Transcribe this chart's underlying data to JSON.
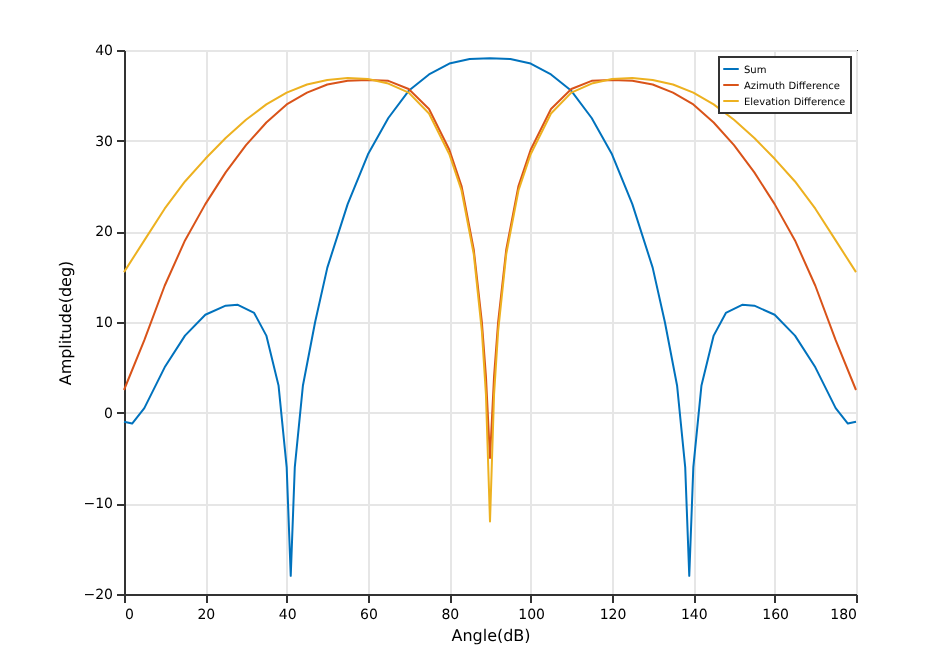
{
  "chart_data": {
    "type": "line",
    "xlabel": "Angle(dB)",
    "ylabel": "Amplitude(deg)",
    "xlim": [
      0,
      180
    ],
    "ylim": [
      -20,
      40
    ],
    "xticks": [
      0,
      20,
      40,
      60,
      80,
      100,
      120,
      140,
      160,
      180
    ],
    "yticks": [
      -20,
      -10,
      0,
      10,
      20,
      30,
      40
    ],
    "grid": true,
    "legend": "top right",
    "marker": "none",
    "line_style": "solid",
    "series": [
      {
        "name": "Sum",
        "color": "#0072bd",
        "x": [
          0,
          2,
          5,
          10,
          15,
          20,
          25,
          28,
          32,
          35,
          38,
          40,
          41,
          42,
          44,
          47,
          50,
          55,
          60,
          65,
          70,
          75,
          80,
          85,
          90,
          95,
          100,
          105,
          110,
          115,
          120,
          125,
          130,
          133,
          136,
          138,
          139,
          140,
          142,
          145,
          148,
          152,
          155,
          160,
          165,
          170,
          175,
          178,
          180
        ],
        "values": [
          -1,
          -1.2,
          0.5,
          5,
          8.5,
          10.8,
          11.8,
          11.9,
          11,
          8.5,
          3,
          -6,
          -18,
          -6,
          3,
          10,
          16,
          23,
          28.5,
          32.5,
          35.5,
          37.3,
          38.5,
          39,
          39.1,
          39,
          38.5,
          37.3,
          35.5,
          32.5,
          28.5,
          23,
          16,
          10,
          3,
          -6,
          -18,
          -6,
          3,
          8.5,
          11,
          11.9,
          11.8,
          10.8,
          8.5,
          5,
          0.5,
          -1.2,
          -1
        ]
      },
      {
        "name": "Azimuth Difference",
        "color": "#d95319",
        "x": [
          0,
          5,
          10,
          15,
          20,
          25,
          30,
          35,
          40,
          45,
          50,
          55,
          60,
          65,
          70,
          75,
          80,
          83,
          86,
          88,
          89,
          90,
          91,
          92,
          94,
          97,
          100,
          105,
          110,
          115,
          120,
          125,
          130,
          135,
          140,
          145,
          150,
          155,
          160,
          165,
          170,
          175,
          180
        ],
        "values": [
          2.5,
          8,
          14,
          19,
          23,
          26.5,
          29.5,
          32,
          34,
          35.3,
          36.2,
          36.6,
          36.7,
          36.6,
          35.7,
          33.5,
          29,
          25,
          18,
          10,
          4,
          -5,
          4,
          10,
          18,
          25,
          29,
          33.5,
          35.7,
          36.6,
          36.7,
          36.6,
          36.2,
          35.3,
          34,
          32,
          29.5,
          26.5,
          23,
          19,
          14,
          8,
          2.5
        ]
      },
      {
        "name": "Elevation Difference",
        "color": "#edb120",
        "x": [
          0,
          5,
          10,
          15,
          20,
          25,
          30,
          35,
          40,
          45,
          50,
          55,
          60,
          65,
          70,
          75,
          80,
          83,
          86,
          88,
          89,
          90,
          91,
          92,
          94,
          97,
          100,
          105,
          110,
          115,
          120,
          125,
          130,
          135,
          140,
          145,
          150,
          155,
          160,
          165,
          170,
          175,
          180
        ],
        "values": [
          15.5,
          19,
          22.5,
          25.5,
          28,
          30.3,
          32.3,
          34,
          35.3,
          36.2,
          36.7,
          36.9,
          36.8,
          36.3,
          35.3,
          33,
          28.5,
          24.5,
          17.5,
          9,
          2,
          -12,
          2,
          9,
          17.5,
          24.5,
          28.5,
          33,
          35.3,
          36.3,
          36.8,
          36.9,
          36.7,
          36.2,
          35.3,
          34,
          32.3,
          30.3,
          28,
          25.5,
          22.5,
          19,
          15.5
        ]
      }
    ]
  }
}
